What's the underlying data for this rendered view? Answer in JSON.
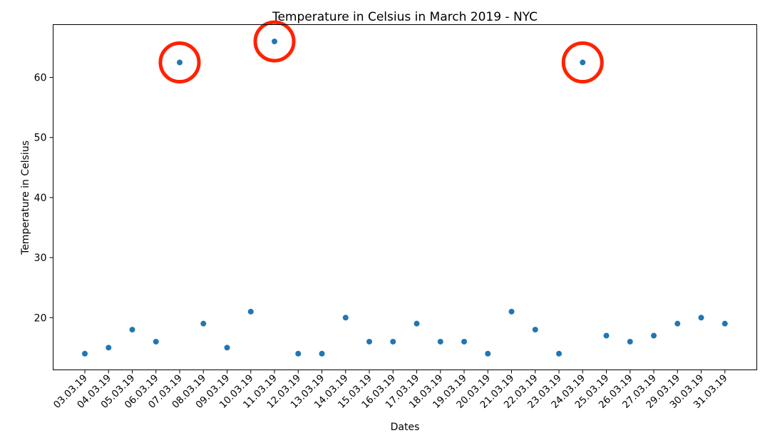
{
  "chart_data": {
    "type": "scatter",
    "title": "Temperature in Celsius in March 2019 - NYC",
    "xlabel": "Dates",
    "ylabel": "Temperature in Celsius",
    "ylim": [
      11.3,
      68.8
    ],
    "yticks": [
      20,
      30,
      40,
      50,
      60
    ],
    "grid": false,
    "legend": "none",
    "categories": [
      "03.03.19",
      "04.03.19",
      "05.03.19",
      "06.03.19",
      "07.03.19",
      "08.03.19",
      "09.03.19",
      "10.03.19",
      "11.03.19",
      "12.03.19",
      "13.03.19",
      "14.03.19",
      "15.03.19",
      "16.03.19",
      "17.03.19",
      "18.03.19",
      "19.03.19",
      "20.03.19",
      "21.03.19",
      "22.03.19",
      "23.03.19",
      "24.03.19",
      "25.03.19",
      "26.03.19",
      "27.03.19",
      "29.03.19",
      "30.03.19",
      "31.03.19"
    ],
    "values": [
      14,
      15,
      18,
      16,
      62.5,
      19,
      15,
      21,
      66,
      14,
      14,
      20,
      16,
      16,
      19,
      16,
      16,
      14,
      21,
      18,
      14,
      62.5,
      17,
      16,
      17,
      19,
      20,
      19
    ],
    "highlighted_outliers": [
      "07.03.19",
      "11.03.19",
      "24.03.19"
    ],
    "colors": {
      "points": "#1f77b4",
      "outlier_circle": "#ff2200",
      "axes": "#000000"
    }
  }
}
